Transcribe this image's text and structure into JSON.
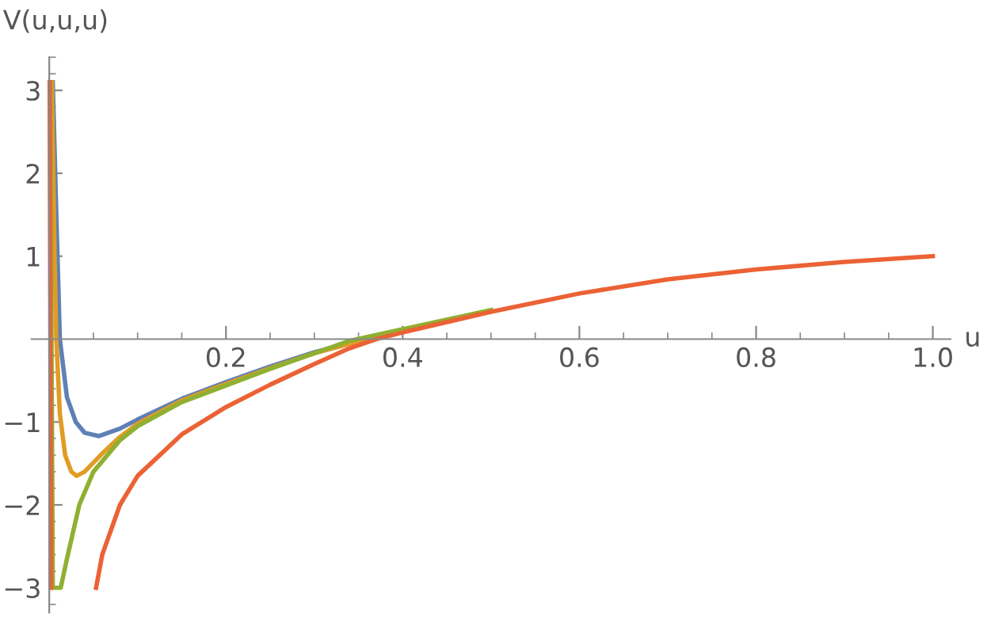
{
  "chart_data": {
    "type": "line",
    "xlabel": "u",
    "ylabel": "V(u,u,u)",
    "xlim": [
      -0.02,
      1.02
    ],
    "ylim": [
      -3.3,
      3.4
    ],
    "xticks": [
      0.2,
      0.4,
      0.6,
      0.8,
      {
        "value": 1.0,
        "label": "1.0"
      }
    ],
    "yticks": [
      {
        "value": -3,
        "label": "−3"
      },
      {
        "value": -2,
        "label": "−2"
      },
      {
        "value": -1,
        "label": "−1"
      },
      1,
      2,
      3
    ],
    "grid": false,
    "marker": "none",
    "line_style": "solid",
    "series": [
      {
        "color": "#5e81b5",
        "x": [
          0.004,
          0.008,
          0.012,
          0.02,
          0.03,
          0.04,
          0.056,
          0.08,
          0.1,
          0.15,
          0.2,
          0.25,
          0.3,
          0.35,
          0.4,
          0.5
        ],
        "values": [
          3.1,
          1.5,
          0,
          -0.7,
          -1.0,
          -1.13,
          -1.17,
          -1.08,
          -0.97,
          -0.72,
          -0.52,
          -0.33,
          -0.16,
          -0.02,
          0.1,
          0.34
        ]
      },
      {
        "color": "#e19c24",
        "x": [
          0.003,
          0.006,
          0.008,
          0.012,
          0.018,
          0.025,
          0.031,
          0.04,
          0.06,
          0.08,
          0.1,
          0.15,
          0.2,
          0.25,
          0.3,
          0.35,
          0.4,
          0.5
        ],
        "values": [
          3.1,
          1.0,
          0,
          -0.9,
          -1.4,
          -1.6,
          -1.65,
          -1.6,
          -1.38,
          -1.18,
          -1.02,
          -0.74,
          -0.54,
          -0.35,
          -0.17,
          -0.03,
          0.1,
          0.34
        ]
      },
      {
        "color": "#8fb032",
        "x": [
          0.001,
          0.004,
          0.013,
          0.02,
          0.034,
          0.05,
          0.08,
          0.1,
          0.15,
          0.2,
          0.25,
          0.3,
          0.34,
          0.4,
          0.5
        ],
        "values": [
          3.1,
          -3.0,
          -3.0,
          -2.65,
          -2.0,
          -1.6,
          -1.22,
          -1.05,
          -0.76,
          -0.56,
          -0.36,
          -0.17,
          -0.02,
          0.12,
          0.35
        ]
      },
      {
        "color": "#eb6235",
        "x": [
          0.0005,
          0.002,
          0.02,
          0.053,
          0.06,
          0.08,
          0.1,
          0.15,
          0.2,
          0.25,
          0.3,
          0.34,
          0.37,
          0.4,
          0.5,
          0.6,
          0.7,
          0.8,
          0.9,
          1.0
        ],
        "values": [
          3.1,
          -3.0,
          null,
          -3.0,
          -2.6,
          -2.0,
          -1.65,
          -1.15,
          -0.82,
          -0.55,
          -0.3,
          -0.11,
          0,
          0.08,
          0.33,
          0.55,
          0.72,
          0.84,
          0.93,
          1.0
        ]
      }
    ]
  }
}
